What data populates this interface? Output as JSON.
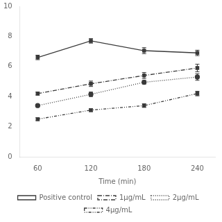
{
  "chart_data": {
    "type": "line",
    "x": [
      60,
      120,
      180,
      240
    ],
    "series": [
      {
        "name": "Positive control",
        "color": "#3a3a3a",
        "values": [
          6.6,
          7.7,
          7.05,
          6.9
        ],
        "yerr": [
          0.15,
          0.15,
          0.2,
          0.18
        ],
        "marker": "square",
        "line_style": "solid"
      },
      {
        "name": "1μg/mL",
        "color": "#3a3a3a",
        "values": [
          4.2,
          4.85,
          5.4,
          5.9
        ],
        "yerr": [
          0.1,
          0.18,
          0.2,
          0.25
        ],
        "marker": "square",
        "line_style": "dashdot"
      },
      {
        "name": "2μg/mL",
        "color": "#3a3a3a",
        "values": [
          3.4,
          4.15,
          4.95,
          5.3
        ],
        "yerr": [
          0.08,
          0.15,
          0.12,
          0.22
        ],
        "marker": "circle",
        "line_style": "dotted"
      },
      {
        "name": "4μg/mL",
        "color": "#3a3a3a",
        "values": [
          2.5,
          3.1,
          3.4,
          4.2
        ],
        "yerr": [
          0.1,
          0.1,
          0.12,
          0.15
        ],
        "marker": "square",
        "line_style": "dashdotdot"
      }
    ],
    "xlim": [
      40,
      260
    ],
    "ylim": [
      0,
      10
    ],
    "xticks": [
      60,
      120,
      180,
      240
    ],
    "yticks": [
      0,
      2,
      4,
      6,
      8,
      10
    ],
    "xlabel": "Time (min)",
    "grid": false,
    "legend": "bottom"
  }
}
